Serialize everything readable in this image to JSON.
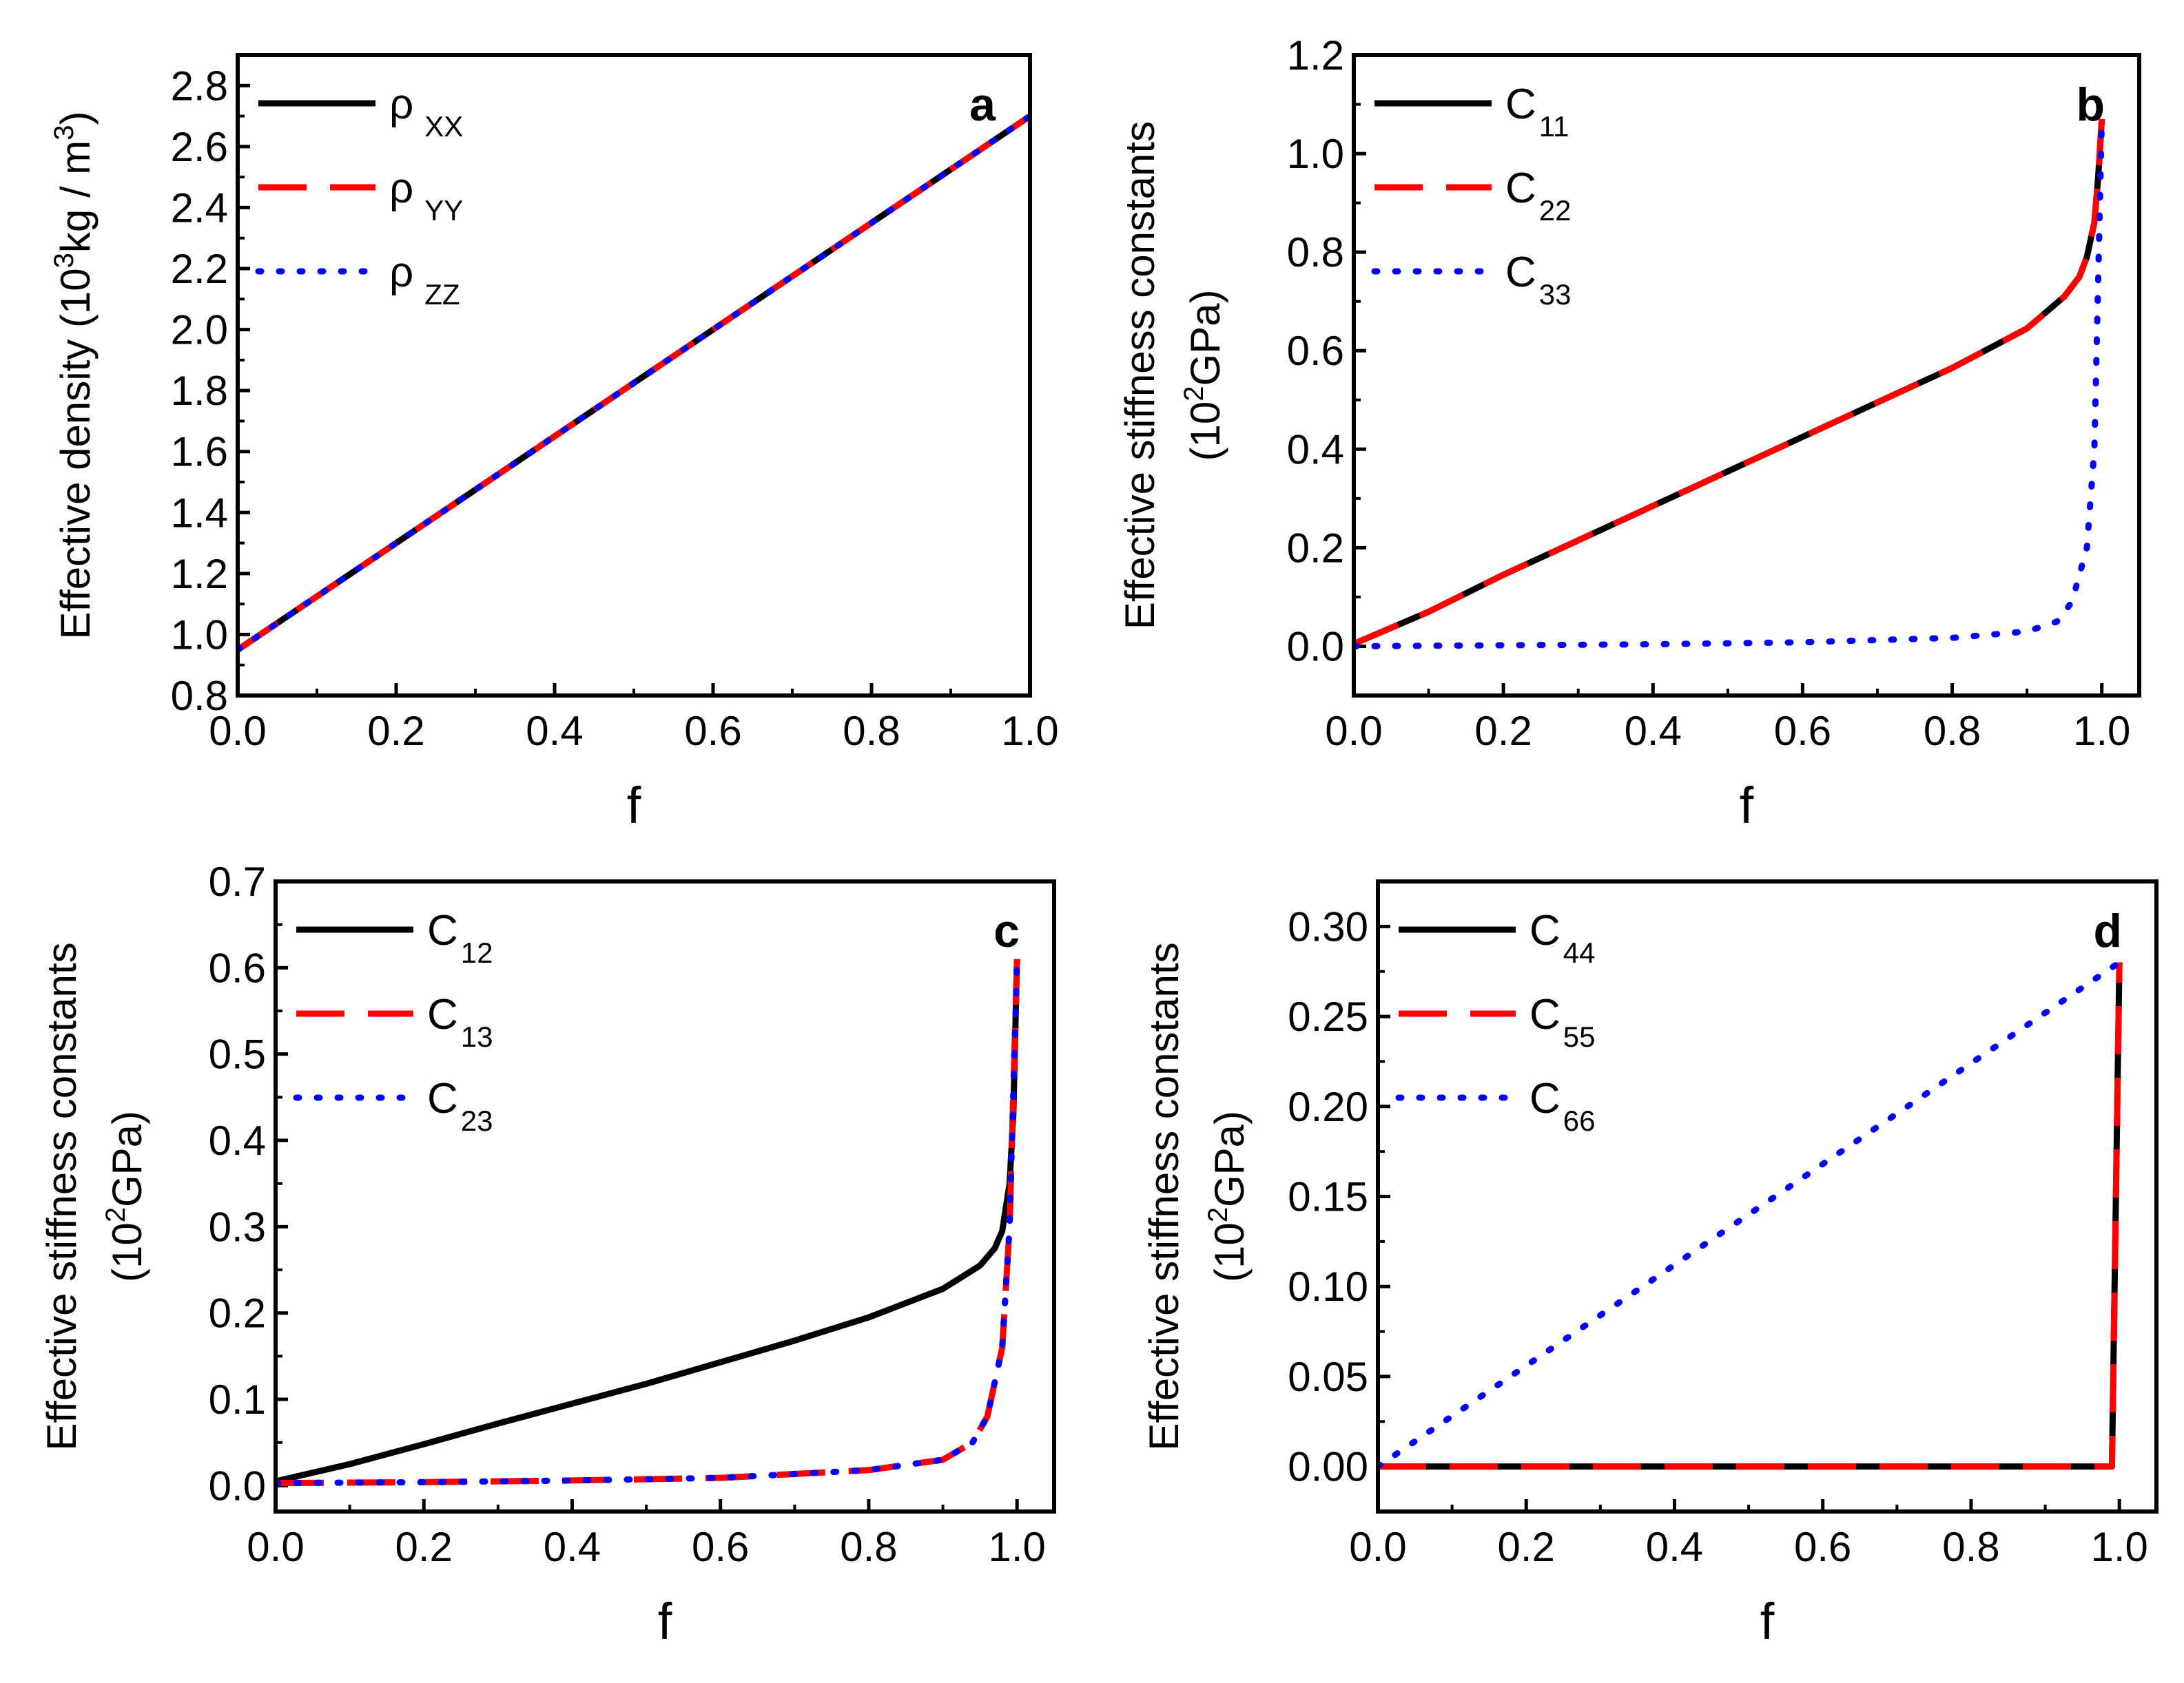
{
  "figure": {
    "colors": {
      "black": "#000000",
      "red": "#ff0000",
      "blue": "#0000ff"
    }
  },
  "chart_data": [
    {
      "type": "line",
      "panel": "a",
      "xlabel": "f",
      "ylabel": "Effective density (10^3kg / m^3)",
      "ylabel_parts": {
        "pre": "Effective density (10",
        "sup1": "3",
        "mid": "kg / m",
        "sup2": "3",
        "post": ")"
      },
      "xlim": [
        0.0,
        1.0
      ],
      "ylim": [
        0.8,
        2.9
      ],
      "xticks": [
        "0.0",
        "0.2",
        "0.4",
        "0.6",
        "0.8",
        "1.0"
      ],
      "yticks": [
        "0.8",
        "1.0",
        "1.2",
        "1.4",
        "1.6",
        "1.8",
        "2.0",
        "2.2",
        "2.4",
        "2.6",
        "2.8"
      ],
      "legend_position": "top-left",
      "series": [
        {
          "name": "ρXX",
          "symbol": "ρ",
          "subscript": "XX",
          "color": "#000000",
          "style": "solid",
          "x": [
            0,
            1
          ],
          "y": [
            0.95,
            2.7
          ]
        },
        {
          "name": "ρYY",
          "symbol": "ρ",
          "subscript": "YY",
          "color": "#ff0000",
          "style": "dash",
          "x": [
            0,
            1
          ],
          "y": [
            0.95,
            2.7
          ]
        },
        {
          "name": "ρZZ",
          "symbol": "ρ",
          "subscript": "ZZ",
          "color": "#0000ff",
          "style": "dot",
          "x": [
            0,
            1
          ],
          "y": [
            0.95,
            2.7
          ]
        }
      ]
    },
    {
      "type": "line",
      "panel": "b",
      "xlabel": "f",
      "ylabel_line1": "Effective stiffness constants",
      "ylabel_line2": {
        "pre": "(10",
        "sup": "2",
        "post": "GPa)"
      },
      "xlim": [
        0.0,
        1.05
      ],
      "ylim": [
        -0.1,
        1.2
      ],
      "xticks": [
        "0.0",
        "0.2",
        "0.4",
        "0.6",
        "0.8",
        "1.0"
      ],
      "yticks": [
        "0.0",
        "0.2",
        "0.4",
        "0.6",
        "0.8",
        "1.0",
        "1.2"
      ],
      "legend_position": "top-left",
      "series": [
        {
          "name": "C11",
          "symbol": "C",
          "subscript": "11",
          "color": "#000000",
          "style": "solid",
          "x": [
            0,
            0.1,
            0.2,
            0.3,
            0.4,
            0.5,
            0.6,
            0.7,
            0.8,
            0.9,
            0.95,
            0.97,
            0.98,
            0.99,
            0.995,
            1.0
          ],
          "y": [
            0.005,
            0.07,
            0.145,
            0.215,
            0.285,
            0.355,
            0.425,
            0.495,
            0.565,
            0.645,
            0.71,
            0.75,
            0.79,
            0.86,
            0.95,
            1.07
          ]
        },
        {
          "name": "C22",
          "symbol": "C",
          "subscript": "22",
          "color": "#ff0000",
          "style": "dash",
          "x": [
            0,
            0.1,
            0.2,
            0.3,
            0.4,
            0.5,
            0.6,
            0.7,
            0.8,
            0.9,
            0.95,
            0.97,
            0.98,
            0.99,
            0.995,
            1.0
          ],
          "y": [
            0.005,
            0.07,
            0.145,
            0.215,
            0.285,
            0.355,
            0.425,
            0.495,
            0.565,
            0.645,
            0.71,
            0.75,
            0.79,
            0.86,
            0.95,
            1.07
          ]
        },
        {
          "name": "C33",
          "symbol": "C",
          "subscript": "33",
          "color": "#0000ff",
          "style": "dot",
          "x": [
            0,
            0.2,
            0.4,
            0.6,
            0.8,
            0.9,
            0.94,
            0.96,
            0.98,
            0.99,
            1.0
          ],
          "y": [
            0.0,
            0.002,
            0.004,
            0.008,
            0.017,
            0.03,
            0.05,
            0.09,
            0.2,
            0.4,
            1.07
          ]
        }
      ]
    },
    {
      "type": "line",
      "panel": "c",
      "xlabel": "f",
      "ylabel_line1": "Effective stiffness constants",
      "ylabel_line2": {
        "pre": "(10",
        "sup": "2",
        "post": "GPa)"
      },
      "xlim": [
        0.0,
        1.05
      ],
      "ylim": [
        -0.03,
        0.7
      ],
      "xticks": [
        "0.0",
        "0.2",
        "0.4",
        "0.6",
        "0.8",
        "1.0"
      ],
      "yticks": [
        "0.0",
        "0.1",
        "0.2",
        "0.3",
        "0.4",
        "0.5",
        "0.6",
        "0.7"
      ],
      "legend_position": "top-left",
      "series": [
        {
          "name": "C12",
          "symbol": "C",
          "subscript": "12",
          "color": "#000000",
          "style": "solid",
          "x": [
            0,
            0.1,
            0.2,
            0.3,
            0.4,
            0.5,
            0.6,
            0.7,
            0.8,
            0.9,
            0.95,
            0.97,
            0.98,
            0.99,
            0.995,
            1.0
          ],
          "y": [
            0.005,
            0.025,
            0.048,
            0.072,
            0.095,
            0.118,
            0.143,
            0.168,
            0.195,
            0.228,
            0.255,
            0.275,
            0.295,
            0.35,
            0.43,
            0.61
          ]
        },
        {
          "name": "C13",
          "symbol": "C",
          "subscript": "13",
          "color": "#ff0000",
          "style": "dash",
          "x": [
            0,
            0.2,
            0.4,
            0.6,
            0.8,
            0.9,
            0.94,
            0.96,
            0.98,
            0.99,
            1.0
          ],
          "y": [
            0.003,
            0.004,
            0.006,
            0.009,
            0.018,
            0.03,
            0.05,
            0.08,
            0.16,
            0.3,
            0.61
          ]
        },
        {
          "name": "C23",
          "symbol": "C",
          "subscript": "23",
          "color": "#0000ff",
          "style": "dot",
          "x": [
            0,
            0.2,
            0.4,
            0.6,
            0.8,
            0.9,
            0.94,
            0.96,
            0.98,
            0.99,
            1.0
          ],
          "y": [
            0.003,
            0.004,
            0.006,
            0.009,
            0.018,
            0.03,
            0.05,
            0.08,
            0.16,
            0.3,
            0.61
          ]
        }
      ]
    },
    {
      "type": "line",
      "panel": "d",
      "xlabel": "f",
      "ylabel_line1": "Effective stiffness constants",
      "ylabel_line2": {
        "pre": "(10",
        "sup": "2",
        "post": "GPa)"
      },
      "xlim": [
        0.0,
        1.05
      ],
      "ylim": [
        -0.025,
        0.325
      ],
      "xticks": [
        "0.0",
        "0.2",
        "0.4",
        "0.6",
        "0.8",
        "1.0"
      ],
      "yticks": [
        "0.00",
        "0.05",
        "0.10",
        "0.15",
        "0.20",
        "0.25",
        "0.30"
      ],
      "legend_position": "top-left",
      "series": [
        {
          "name": "C44",
          "symbol": "C",
          "subscript": "44",
          "color": "#000000",
          "style": "solid",
          "x": [
            0,
            0.99,
            1.0
          ],
          "y": [
            0,
            0,
            0.28
          ]
        },
        {
          "name": "C55",
          "symbol": "C",
          "subscript": "55",
          "color": "#ff0000",
          "style": "dash",
          "x": [
            0,
            0.99,
            1.0
          ],
          "y": [
            0,
            0,
            0.28
          ]
        },
        {
          "name": "C66",
          "symbol": "C",
          "subscript": "66",
          "color": "#0000ff",
          "style": "dot",
          "x": [
            0,
            1.0
          ],
          "y": [
            0,
            0.28
          ]
        }
      ]
    }
  ]
}
